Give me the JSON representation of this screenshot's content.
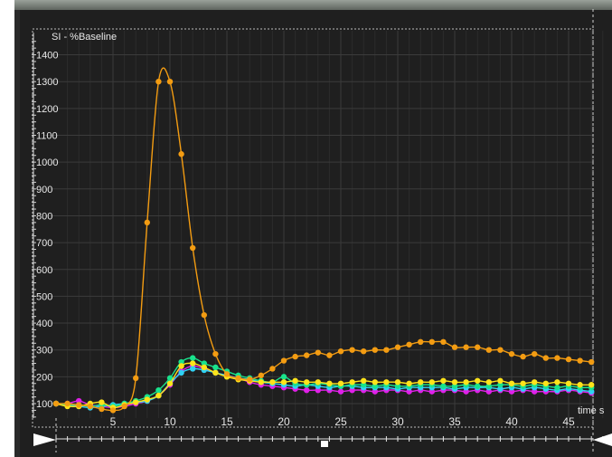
{
  "chart_data": {
    "type": "line",
    "title": "",
    "ylabel": "SI - %Baseline",
    "xlabel": "time s",
    "xlim": [
      0,
      48
    ],
    "ylim": [
      50,
      1450
    ],
    "xticks": [
      5,
      10,
      15,
      20,
      25,
      30,
      35,
      40,
      45
    ],
    "yticks": [
      100,
      200,
      300,
      400,
      500,
      600,
      700,
      800,
      900,
      1000,
      1100,
      1200,
      1300,
      1400
    ],
    "grid": true,
    "x": [
      0,
      1,
      2,
      3,
      4,
      5,
      6,
      7,
      8,
      9,
      10,
      11,
      12,
      13,
      14,
      15,
      16,
      17,
      18,
      19,
      20,
      21,
      22,
      23,
      24,
      25,
      26,
      27,
      28,
      29,
      30,
      31,
      32,
      33,
      34,
      35,
      36,
      37,
      38,
      39,
      40,
      41,
      42,
      43,
      44,
      45,
      46,
      47
    ],
    "series": [
      {
        "color": "#f39c12",
        "values": [
          100,
          100,
          95,
          90,
          80,
          75,
          90,
          195,
          775,
          1300,
          1300,
          1030,
          680,
          430,
          285,
          210,
          195,
          190,
          205,
          230,
          260,
          275,
          280,
          290,
          280,
          295,
          300,
          295,
          300,
          300,
          310,
          320,
          330,
          330,
          330,
          310,
          310,
          310,
          300,
          300,
          285,
          275,
          285,
          270,
          270,
          265,
          260,
          255
        ]
      },
      {
        "color": "#ffe31a",
        "values": [
          100,
          90,
          90,
          100,
          105,
          85,
          95,
          105,
          115,
          130,
          175,
          240,
          250,
          235,
          215,
          200,
          190,
          185,
          180,
          180,
          180,
          185,
          180,
          180,
          175,
          175,
          180,
          185,
          180,
          180,
          180,
          175,
          180,
          180,
          185,
          180,
          180,
          185,
          180,
          185,
          175,
          175,
          180,
          175,
          180,
          175,
          170,
          170
        ]
      },
      {
        "color": "#19e38c",
        "values": [
          100,
          95,
          95,
          90,
          95,
          90,
          100,
          110,
          125,
          150,
          195,
          255,
          270,
          250,
          235,
          220,
          205,
          195,
          185,
          180,
          200,
          175,
          170,
          175,
          170,
          165,
          170,
          170,
          165,
          170,
          165,
          165,
          170,
          170,
          165,
          165,
          170,
          165,
          165,
          170,
          170,
          165,
          170,
          165,
          160,
          165,
          160,
          160
        ]
      },
      {
        "color": "#2fd2f5",
        "values": [
          100,
          95,
          90,
          85,
          90,
          95,
          100,
          105,
          110,
          130,
          175,
          215,
          230,
          225,
          215,
          205,
          195,
          190,
          180,
          175,
          170,
          165,
          170,
          165,
          160,
          165,
          165,
          160,
          160,
          160,
          155,
          160,
          160,
          160,
          160,
          155,
          160,
          160,
          160,
          155,
          160,
          155,
          160,
          155,
          150,
          155,
          150,
          145
        ]
      },
      {
        "color": "#e020e8",
        "values": [
          100,
          100,
          110,
          95,
          90,
          85,
          90,
          100,
          110,
          130,
          170,
          220,
          240,
          230,
          215,
          205,
          195,
          180,
          170,
          165,
          160,
          155,
          150,
          150,
          150,
          145,
          150,
          150,
          145,
          150,
          150,
          145,
          150,
          145,
          150,
          150,
          145,
          150,
          145,
          150,
          145,
          150,
          145,
          145,
          145,
          150,
          145,
          140
        ]
      }
    ]
  }
}
